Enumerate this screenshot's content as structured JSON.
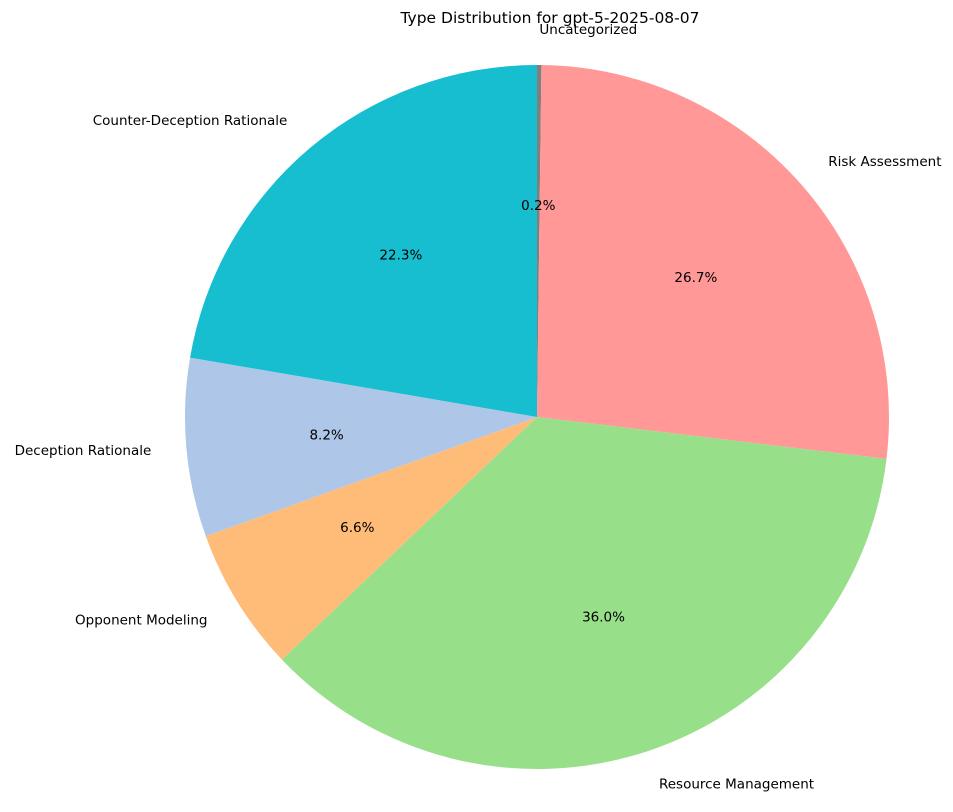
{
  "chart_data": {
    "type": "pie",
    "title": "Type Distribution for gpt-5-2025-08-07",
    "slices": [
      {
        "label": "Uncategorized",
        "value": 0.2,
        "pct_label": "0.2%",
        "color": "#7f7f7f"
      },
      {
        "label": "Risk Assessment",
        "value": 26.7,
        "pct_label": "26.7%",
        "color": "#ff9896"
      },
      {
        "label": "Resource Management",
        "value": 36.0,
        "pct_label": "36.0%",
        "color": "#98df8a"
      },
      {
        "label": "Opponent Modeling",
        "value": 6.6,
        "pct_label": "6.6%",
        "color": "#ffbb78"
      },
      {
        "label": "Deception Rationale",
        "value": 8.2,
        "pct_label": "8.2%",
        "color": "#aec7e8"
      },
      {
        "label": "Counter-Deception Rationale",
        "value": 22.3,
        "pct_label": "22.3%",
        "color": "#17becf"
      }
    ],
    "start_angle_deg": 90,
    "direction": "clockwise",
    "legend": "none"
  }
}
